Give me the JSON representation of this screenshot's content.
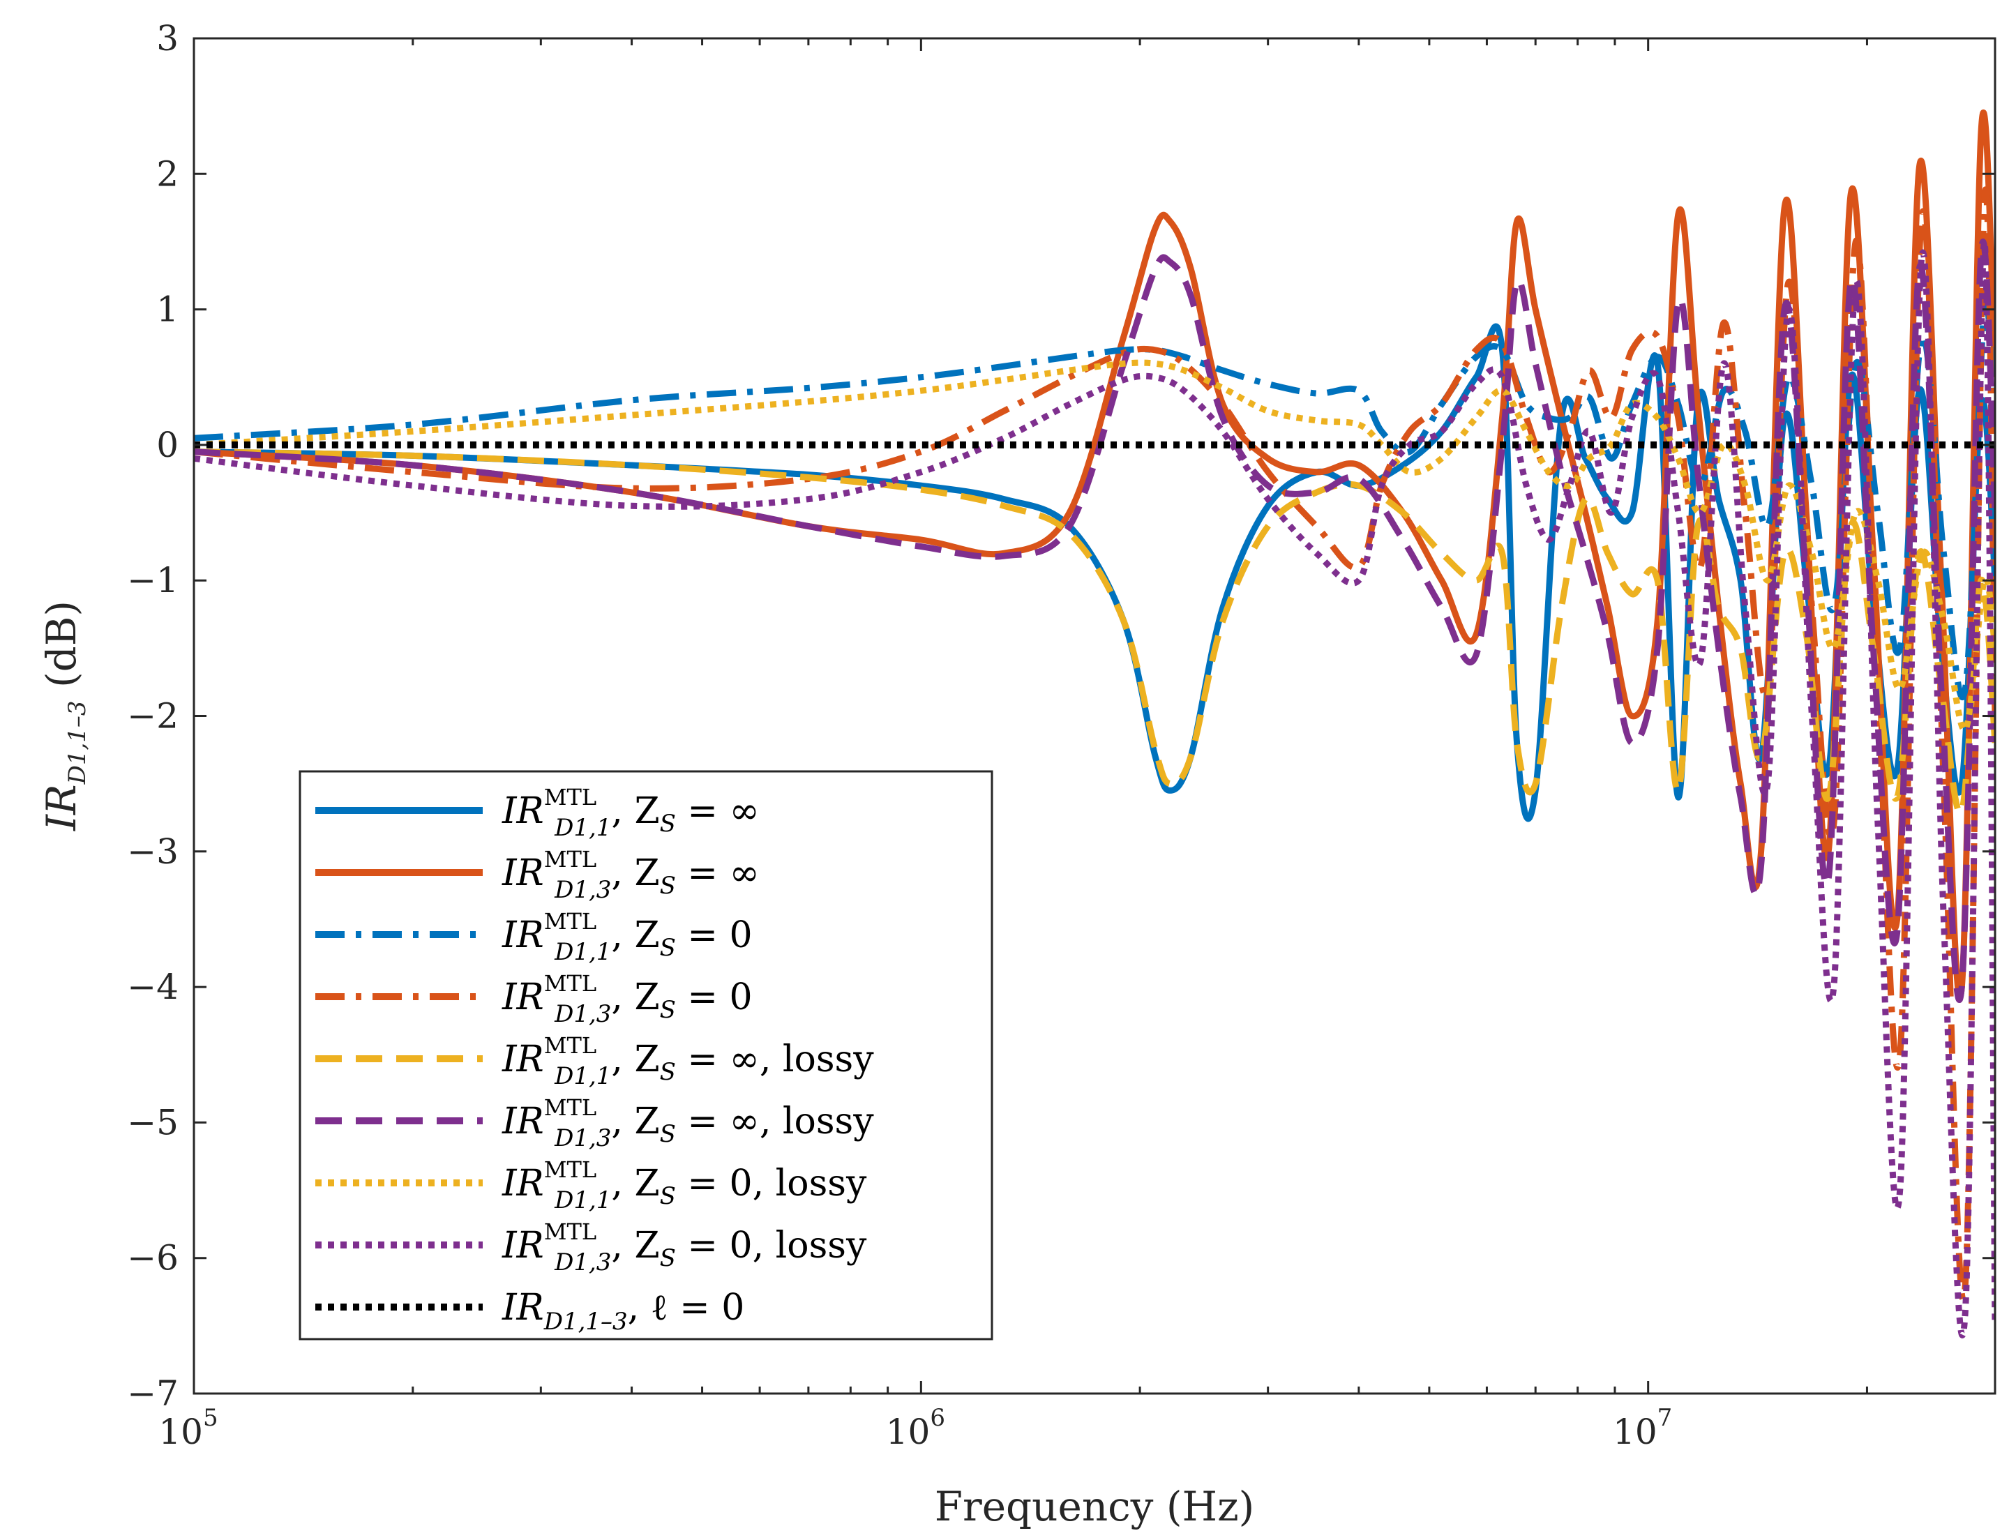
{
  "chart_data": {
    "type": "line",
    "xscale": "log",
    "xlabel": "Frequency (Hz)",
    "ylabel": "IR_{D1,1–3} (dB)",
    "xlim": [
      100000,
      30000000
    ],
    "ylim": [
      -7,
      3
    ],
    "grid": false,
    "legend_position": "bottom-left",
    "x_ticks": [
      {
        "value": 100000,
        "base": "10",
        "exp": "5"
      },
      {
        "value": 1000000,
        "base": "10",
        "exp": "6"
      },
      {
        "value": 10000000,
        "base": "10",
        "exp": "7"
      }
    ],
    "y_ticks": [
      {
        "value": 3,
        "label": "3"
      },
      {
        "value": 2,
        "label": "2"
      },
      {
        "value": 1,
        "label": "1"
      },
      {
        "value": 0,
        "label": "0"
      },
      {
        "value": -1,
        "label": "−1"
      },
      {
        "value": -2,
        "label": "−2"
      },
      {
        "value": -3,
        "label": "−3"
      },
      {
        "value": -4,
        "label": "−4"
      },
      {
        "value": -5,
        "label": "−5"
      },
      {
        "value": -6,
        "label": "−6"
      },
      {
        "value": -7,
        "label": "−7"
      }
    ],
    "series": [
      {
        "name": "IR_{D1,1}^{MTL}, Z_S = ∞",
        "main": "IR",
        "sup": "MTL",
        "sub": "D1,1",
        "rest": ",  Z",
        "rsub": "S",
        "tail": " = ∞",
        "color": "#0072BD",
        "dash": "solid",
        "x": [
          100000,
          200000,
          400000,
          700000,
          1000000,
          1300000,
          1600000,
          1900000,
          2100000,
          2200000,
          2350000,
          2600000,
          3000000,
          3500000,
          4000000,
          4600000,
          5200000,
          5800000,
          6300000,
          6600000,
          7000000,
          7600000,
          8200000,
          8800000,
          9500000,
          10300000,
          11000000,
          11700000,
          12500000,
          13400000,
          14300000,
          15400000,
          16500000,
          17700000,
          19000000,
          20400000,
          22000000,
          23600000,
          25300000,
          27000000,
          28700000,
          30000000
        ],
        "y": [
          -0.05,
          -0.08,
          -0.15,
          -0.22,
          -0.3,
          -0.4,
          -0.6,
          -1.3,
          -2.3,
          -2.55,
          -2.3,
          -1.2,
          -0.45,
          -0.2,
          -0.3,
          -0.15,
          0.1,
          0.5,
          0.7,
          -2.2,
          -2.55,
          0.2,
          -0.1,
          -0.4,
          -0.5,
          0.6,
          -2.6,
          0.3,
          -0.4,
          -1.0,
          -2.3,
          0.2,
          -1.0,
          -2.4,
          0.5,
          -1.2,
          -2.4,
          0.4,
          -1.5,
          -2.5,
          0.3,
          -1.0
        ]
      },
      {
        "name": "IR_{D1,3}^{MTL}, Z_S = ∞",
        "main": "IR",
        "sup": "MTL",
        "sub": "D1,3",
        "rest": ",  Z",
        "rsub": "S",
        "tail": " = ∞",
        "color": "#D95319",
        "dash": "solid",
        "x": [
          100000,
          200000,
          400000,
          700000,
          1000000,
          1300000,
          1600000,
          1900000,
          2100000,
          2200000,
          2350000,
          2600000,
          3000000,
          3500000,
          4000000,
          4600000,
          5200000,
          5800000,
          6300000,
          6600000,
          7000000,
          7600000,
          8200000,
          8800000,
          9500000,
          10300000,
          11000000,
          11700000,
          12500000,
          13400000,
          14300000,
          15400000,
          16500000,
          17700000,
          19000000,
          20400000,
          22000000,
          23600000,
          25300000,
          27000000,
          28700000,
          30000000
        ],
        "y": [
          -0.05,
          -0.15,
          -0.35,
          -0.6,
          -0.7,
          -0.8,
          -0.5,
          0.8,
          1.6,
          1.65,
          1.3,
          0.3,
          -0.1,
          -0.2,
          -0.15,
          -0.5,
          -1.0,
          -1.4,
          0.2,
          1.65,
          1.0,
          0.2,
          -0.5,
          -1.2,
          -2.0,
          -1.3,
          1.7,
          0.3,
          -1.2,
          -2.5,
          -3.0,
          1.75,
          -0.5,
          -3.0,
          1.85,
          -0.8,
          -3.5,
          2.05,
          -1.0,
          -4.0,
          2.3,
          0.5
        ]
      },
      {
        "name": "IR_{D1,1}^{MTL}, Z_S = 0",
        "main": "IR",
        "sup": "MTL",
        "sub": "D1,1",
        "rest": ",  Z",
        "rsub": "S",
        "tail": " = 0",
        "color": "#0072BD",
        "dash": "dashdot",
        "x": [
          100000,
          200000,
          400000,
          700000,
          1000000,
          1300000,
          1600000,
          1900000,
          2100000,
          2300000,
          2600000,
          3000000,
          3500000,
          4000000,
          4300000,
          4700000,
          5200000,
          5800000,
          6300000,
          6800000,
          7300000,
          7800000,
          8300000,
          8900000,
          9500000,
          10300000,
          11000000,
          11800000,
          12700000,
          13600000,
          14600000,
          15600000,
          16800000,
          18000000,
          19300000,
          20700000,
          22200000,
          23800000,
          25500000,
          27300000,
          29000000,
          30000000
        ],
        "y": [
          0.05,
          0.15,
          0.33,
          0.42,
          0.5,
          0.58,
          0.65,
          0.7,
          0.7,
          0.65,
          0.55,
          0.45,
          0.38,
          0.4,
          0.1,
          -0.05,
          0.3,
          0.65,
          0.7,
          0.3,
          0.2,
          0.2,
          0.35,
          -0.1,
          0.3,
          0.65,
          0.3,
          -0.3,
          0.4,
          0.1,
          -0.6,
          0.5,
          -0.3,
          -1.2,
          0.6,
          -0.5,
          -1.5,
          0.8,
          -0.8,
          -1.8,
          1.0,
          0.0
        ]
      },
      {
        "name": "IR_{D1,3}^{MTL}, Z_S = 0",
        "main": "IR",
        "sup": "MTL",
        "sub": "D1,3",
        "rest": ",  Z",
        "rsub": "S",
        "tail": " = 0",
        "color": "#D95319",
        "dash": "dashdot",
        "x": [
          100000,
          200000,
          400000,
          700000,
          1000000,
          1300000,
          1600000,
          1900000,
          2100000,
          2300000,
          2600000,
          3000000,
          3500000,
          4000000,
          4300000,
          4700000,
          5200000,
          5800000,
          6300000,
          6800000,
          7300000,
          7800000,
          8300000,
          8900000,
          9500000,
          10300000,
          11000000,
          11800000,
          12700000,
          13600000,
          14600000,
          15600000,
          16800000,
          18000000,
          19300000,
          20700000,
          22200000,
          23800000,
          25500000,
          27300000,
          29000000,
          30000000
        ],
        "y": [
          -0.05,
          -0.2,
          -0.32,
          -0.25,
          -0.05,
          0.25,
          0.5,
          0.68,
          0.7,
          0.6,
          0.3,
          -0.2,
          -0.6,
          -0.9,
          -0.3,
          0.1,
          0.3,
          0.7,
          0.75,
          0.2,
          -0.2,
          0.1,
          0.55,
          0.2,
          0.7,
          0.8,
          0.2,
          -0.9,
          0.9,
          -0.5,
          -1.8,
          1.2,
          -1.2,
          -2.8,
          1.5,
          -1.8,
          -4.5,
          1.7,
          -2.5,
          -6.2,
          1.8,
          -2.0
        ]
      },
      {
        "name": "IR_{D1,1}^{MTL}, Z_S = ∞, lossy",
        "main": "IR",
        "sup": "MTL",
        "sub": "D1,1",
        "rest": ",  Z",
        "rsub": "S",
        "tail": " = ∞, lossy",
        "color": "#EDB120",
        "dash": "dash",
        "x": [
          100000,
          200000,
          400000,
          700000,
          1000000,
          1300000,
          1600000,
          1900000,
          2100000,
          2200000,
          2350000,
          2600000,
          3000000,
          3500000,
          4000000,
          4600000,
          5200000,
          5800000,
          6300000,
          6600000,
          7000000,
          7600000,
          8200000,
          8800000,
          9500000,
          10300000,
          11000000,
          11700000,
          12500000,
          13400000,
          14300000,
          15400000,
          16500000,
          17700000,
          19000000,
          20400000,
          22000000,
          23600000,
          25300000,
          27000000,
          28700000,
          30000000
        ],
        "y": [
          -0.05,
          -0.08,
          -0.15,
          -0.24,
          -0.33,
          -0.45,
          -0.65,
          -1.3,
          -2.25,
          -2.5,
          -2.3,
          -1.3,
          -0.6,
          -0.35,
          -0.3,
          -0.5,
          -0.8,
          -1.0,
          -0.8,
          -2.2,
          -2.5,
          -1.2,
          -0.4,
          -0.8,
          -1.1,
          -1.0,
          -2.55,
          -0.6,
          -1.2,
          -1.5,
          -2.3,
          -0.8,
          -1.4,
          -2.6,
          -0.6,
          -1.5,
          -2.6,
          -0.8,
          -1.8,
          -2.7,
          -1.0,
          -2.2
        ]
      },
      {
        "name": "IR_{D1,3}^{MTL}, Z_S = ∞, lossy",
        "main": "IR",
        "sup": "MTL",
        "sub": "D1,3",
        "rest": ",  Z",
        "rsub": "S",
        "tail": " = ∞, lossy",
        "color": "#7E2F8E",
        "dash": "dash",
        "x": [
          100000,
          200000,
          400000,
          700000,
          1000000,
          1300000,
          1600000,
          1900000,
          2100000,
          2200000,
          2350000,
          2600000,
          3000000,
          3500000,
          4000000,
          4600000,
          5200000,
          5800000,
          6300000,
          6600000,
          7000000,
          7600000,
          8200000,
          8800000,
          9500000,
          10300000,
          11000000,
          11700000,
          12500000,
          13400000,
          14300000,
          15400000,
          16500000,
          17700000,
          19000000,
          20400000,
          22000000,
          23600000,
          25300000,
          27000000,
          28700000,
          30000000
        ],
        "y": [
          -0.05,
          -0.15,
          -0.35,
          -0.6,
          -0.75,
          -0.82,
          -0.6,
          0.6,
          1.3,
          1.35,
          1.1,
          0.2,
          -0.3,
          -0.35,
          -0.25,
          -0.7,
          -1.2,
          -1.55,
          0.0,
          1.2,
          0.6,
          -0.2,
          -0.8,
          -1.4,
          -2.2,
          -1.5,
          1.05,
          -0.2,
          -1.5,
          -2.6,
          -3.1,
          1.0,
          -1.0,
          -3.2,
          1.2,
          -1.5,
          -3.6,
          1.3,
          -1.8,
          -4.0,
          1.4,
          -0.5
        ]
      },
      {
        "name": "IR_{D1,1}^{MTL}, Z_S = 0, lossy",
        "main": "IR",
        "sup": "MTL",
        "sub": "D1,1",
        "rest": ",  Z",
        "rsub": "S",
        "tail": " = 0, lossy",
        "color": "#EDB120",
        "dash": "dot",
        "x": [
          100000,
          200000,
          400000,
          700000,
          1000000,
          1300000,
          1600000,
          1900000,
          2100000,
          2300000,
          2600000,
          3000000,
          3500000,
          4000000,
          4300000,
          4700000,
          5200000,
          5800000,
          6300000,
          6800000,
          7300000,
          7800000,
          8300000,
          8900000,
          9500000,
          10300000,
          11000000,
          11800000,
          12700000,
          13600000,
          14600000,
          15600000,
          16800000,
          18000000,
          19300000,
          20700000,
          22200000,
          23800000,
          25500000,
          27300000,
          29000000,
          30000000
        ],
        "y": [
          0.0,
          0.1,
          0.22,
          0.32,
          0.4,
          0.48,
          0.55,
          0.6,
          0.6,
          0.55,
          0.42,
          0.25,
          0.18,
          0.15,
          0.0,
          -0.2,
          -0.1,
          0.2,
          0.4,
          0.1,
          -0.2,
          -0.3,
          -0.1,
          0.0,
          0.3,
          0.2,
          -0.1,
          -0.5,
          0.0,
          -0.3,
          -1.0,
          -0.3,
          -0.8,
          -1.5,
          -0.5,
          -1.0,
          -1.8,
          -0.8,
          -1.3,
          -2.1,
          -1.0,
          -1.5
        ]
      },
      {
        "name": "IR_{D1,3}^{MTL}, Z_S = 0, lossy",
        "main": "IR",
        "sup": "MTL",
        "sub": "D1,3",
        "rest": ",  Z",
        "rsub": "S",
        "tail": " = 0, lossy",
        "color": "#7E2F8E",
        "dash": "dot",
        "x": [
          100000,
          200000,
          400000,
          700000,
          1000000,
          1300000,
          1600000,
          1900000,
          2100000,
          2300000,
          2600000,
          3000000,
          3500000,
          4000000,
          4300000,
          4700000,
          5200000,
          5800000,
          6300000,
          6800000,
          7300000,
          7800000,
          8300000,
          8900000,
          9500000,
          10300000,
          11000000,
          11800000,
          12700000,
          13600000,
          14600000,
          15600000,
          16800000,
          18000000,
          19300000,
          20700000,
          22200000,
          23800000,
          25500000,
          27300000,
          29000000,
          30000000
        ],
        "y": [
          -0.1,
          -0.3,
          -0.45,
          -0.4,
          -0.2,
          0.05,
          0.3,
          0.48,
          0.5,
          0.4,
          0.1,
          -0.4,
          -0.8,
          -1.0,
          -0.3,
          0.0,
          0.1,
          0.45,
          0.5,
          -0.3,
          -0.7,
          -0.3,
          0.1,
          -0.5,
          0.2,
          0.5,
          -0.5,
          -1.6,
          0.6,
          -1.2,
          -2.5,
          1.0,
          -2.0,
          -4.0,
          1.2,
          -2.8,
          -5.5,
          1.4,
          -3.5,
          -6.4,
          1.5,
          -6.5
        ]
      },
      {
        "name": "IR_{D1,1–3}, ℓ = 0",
        "main": "IR",
        "sup": "",
        "sub": "D1,1–3",
        "rest": ",  ℓ",
        "rsub": "",
        "tail": " = 0",
        "color": "#000000",
        "dash": "dot",
        "x": [
          100000,
          30000000
        ],
        "y": [
          0,
          0
        ]
      }
    ]
  }
}
